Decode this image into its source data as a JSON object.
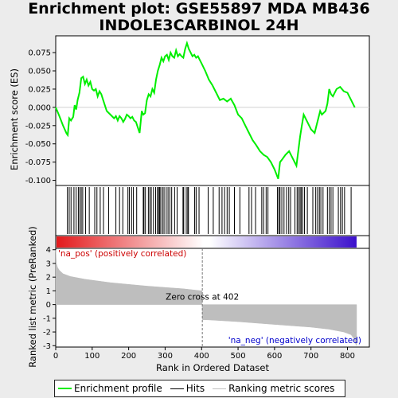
{
  "title": "Enrichment plot: GSE55897 MDA MB436\nINDOLE3CARBINOL 24H",
  "legend": [
    {
      "label": "Enrichment profile",
      "color": "#00ee00"
    },
    {
      "label": "Hits",
      "color": "#000000"
    },
    {
      "label": "Ranking metric scores",
      "color": "#bebebe"
    }
  ],
  "chart_data": {
    "type": "line",
    "top_panel": {
      "ylabel": "Enrichment score (ES)",
      "ylim": [
        -0.107,
        0.098
      ],
      "yticks": [
        -0.1,
        -0.075,
        -0.05,
        -0.025,
        0.0,
        0.025,
        0.05,
        0.075
      ],
      "ytick_labels": [
        "-0.100",
        "-0.075",
        "-0.050",
        "-0.025",
        "0.000",
        "0.025",
        "0.050",
        "0.075"
      ],
      "series": [
        {
          "name": "Enrichment profile",
          "color": "#00ee00",
          "x": [
            0,
            10,
            20,
            30,
            33,
            37,
            42,
            48,
            52,
            56,
            60,
            65,
            70,
            75,
            80,
            85,
            90,
            95,
            100,
            105,
            110,
            115,
            120,
            125,
            130,
            140,
            150,
            160,
            165,
            170,
            175,
            180,
            185,
            190,
            195,
            200,
            205,
            210,
            215,
            220,
            230,
            236,
            240,
            245,
            250,
            255,
            260,
            265,
            270,
            275,
            280,
            285,
            290,
            295,
            300,
            305,
            310,
            315,
            320,
            325,
            330,
            335,
            340,
            345,
            350,
            355,
            360,
            365,
            370,
            375,
            380,
            385,
            390,
            395,
            400,
            410,
            420,
            430,
            440,
            450,
            460,
            470,
            480,
            490,
            500,
            510,
            520,
            530,
            540,
            550,
            560,
            570,
            580,
            590,
            600,
            610,
            615,
            620,
            630,
            640,
            650,
            660,
            665,
            670,
            675,
            680,
            690,
            700,
            710,
            715,
            720,
            725,
            730,
            740,
            745,
            750,
            755,
            760,
            770,
            780,
            790,
            800,
            810,
            820
          ],
          "y": [
            0.0,
            -0.012,
            -0.025,
            -0.036,
            -0.038,
            -0.015,
            -0.018,
            -0.013,
            0.003,
            -0.003,
            0.01,
            0.02,
            0.04,
            0.042,
            0.032,
            0.038,
            0.03,
            0.035,
            0.025,
            0.023,
            0.025,
            0.015,
            0.022,
            0.018,
            0.01,
            -0.005,
            -0.01,
            -0.015,
            -0.012,
            -0.018,
            -0.012,
            -0.015,
            -0.02,
            -0.016,
            -0.01,
            -0.012,
            -0.015,
            -0.013,
            -0.018,
            -0.02,
            -0.035,
            -0.005,
            -0.01,
            -0.008,
            0.01,
            0.018,
            0.015,
            0.025,
            0.02,
            0.038,
            0.05,
            0.058,
            0.068,
            0.063,
            0.07,
            0.072,
            0.065,
            0.075,
            0.07,
            0.068,
            0.078,
            0.07,
            0.073,
            0.07,
            0.068,
            0.08,
            0.088,
            0.08,
            0.075,
            0.07,
            0.072,
            0.068,
            0.07,
            0.065,
            0.06,
            0.05,
            0.038,
            0.03,
            0.02,
            0.01,
            0.012,
            0.008,
            0.012,
            0.003,
            -0.01,
            -0.015,
            -0.025,
            -0.035,
            -0.045,
            -0.052,
            -0.06,
            -0.065,
            -0.068,
            -0.075,
            -0.085,
            -0.098,
            -0.075,
            -0.072,
            -0.065,
            -0.06,
            -0.07,
            -0.08,
            -0.06,
            -0.04,
            -0.025,
            -0.01,
            -0.02,
            -0.03,
            -0.035,
            -0.025,
            -0.015,
            -0.005,
            -0.01,
            -0.005,
            0.005,
            0.025,
            0.018,
            0.015,
            0.025,
            0.028,
            0.022,
            0.02,
            0.01,
            0.0
          ]
        }
      ]
    },
    "hits": [
      32,
      37,
      42,
      50,
      56,
      62,
      66,
      70,
      74,
      82,
      92,
      107,
      113,
      122,
      131,
      145,
      165,
      175,
      184,
      198,
      202,
      208,
      213,
      222,
      240,
      242,
      246,
      254,
      258,
      262,
      268,
      274,
      279,
      282,
      285,
      288,
      293,
      297,
      303,
      308,
      313,
      318,
      326,
      333,
      349,
      351,
      358,
      362,
      364,
      381,
      385,
      393,
      418,
      432,
      448,
      456,
      463,
      470,
      476,
      490,
      505,
      530,
      537,
      548,
      565,
      570,
      577,
      582,
      608,
      612,
      615,
      620,
      626,
      633,
      639,
      644,
      656,
      662,
      666,
      670,
      673,
      677,
      682,
      690,
      705,
      713,
      718,
      723,
      727,
      733,
      745,
      750,
      755,
      760,
      775,
      781,
      786,
      792,
      810
    ],
    "colorbar": {
      "range": [
        0,
        825
      ],
      "positive_color": "#e31a1c",
      "neutral_color": "#ffffff",
      "negative_color": "#3b10cc"
    },
    "bottom_panel": {
      "ylabel": "Ranked list metric (PreRanked)",
      "xlabel": "Rank in Ordered Dataset",
      "ylim": [
        -3.1,
        4.1
      ],
      "yticks": [
        -3,
        -2,
        -1,
        0,
        1,
        2,
        3,
        4
      ],
      "xlim": [
        0,
        860
      ],
      "xticks": [
        0,
        100,
        200,
        300,
        400,
        500,
        600,
        700,
        800
      ],
      "fill_color": "#bebebe",
      "metric_x": [
        0,
        2,
        5,
        10,
        20,
        40,
        80,
        150,
        250,
        350,
        401,
        402,
        420,
        500,
        600,
        700,
        750,
        790,
        810,
        818,
        822,
        825
      ],
      "metric_y": [
        4.0,
        3.0,
        2.7,
        2.5,
        2.25,
        2.05,
        1.85,
        1.6,
        1.35,
        1.15,
        1.0,
        -1.1,
        -1.12,
        -1.25,
        -1.45,
        -1.65,
        -1.8,
        -2.0,
        -2.2,
        -2.5,
        -2.85,
        -3.0
      ],
      "zero_cross": 402,
      "zero_cross_label": "Zero cross at 402",
      "pos_label": "'na_pos' (positively correlated)",
      "neg_label": "'na_neg' (negatively correlated)",
      "pos_color": "#cc0000",
      "neg_color": "#0000cc"
    },
    "grid": false
  }
}
